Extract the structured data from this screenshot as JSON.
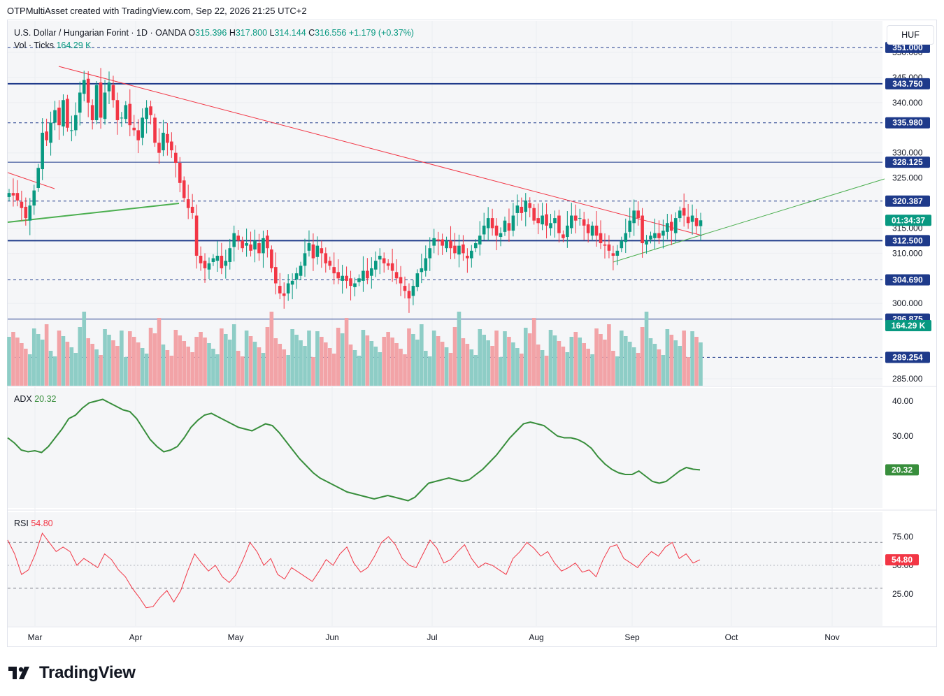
{
  "header": {
    "attribution": "OTPMultiAsset created with TradingView.com, Sep 22, 2026 21:25 UTC+2"
  },
  "legend": {
    "symbol": "U.S. Dollar / Hungarian Forint · 1D · OANDA",
    "o_label": "O",
    "o_value": "315.396",
    "h_label": "H",
    "h_value": "317.800",
    "l_label": "L",
    "l_value": "314.144",
    "c_label": "C",
    "c_value": "316.556",
    "change": "+1.179 (+0.37%)",
    "vol_label": "Vol · Ticks",
    "vol_value": "164.29 K",
    "adx_label": "ADX",
    "adx_value": "20.32",
    "rsi_label": "RSI",
    "rsi_value": "54.80"
  },
  "currency_button": "HUF",
  "brand": {
    "name": "TradingView"
  },
  "colors": {
    "up": "#089981",
    "down": "#f23645",
    "vol_up": "#8ecdc6",
    "vol_down": "#f2a3a7",
    "level": "#1e3a8a",
    "trend_down": "#f23645",
    "trend_up": "#4caf50",
    "adx": "#388e3c",
    "rsi": "#f23645"
  },
  "chart_data": [
    {
      "type": "candlestick",
      "x_labels": [
        "Mar",
        "Apr",
        "May",
        "Jun",
        "Jul",
        "Aug",
        "Sep",
        "Oct",
        "Nov"
      ],
      "y_ticks": [
        "285.000",
        "300.000",
        "310.000",
        "315.000",
        "325.000",
        "330.000",
        "340.000",
        "345.000",
        "350.000"
      ],
      "price_labels": [
        {
          "text": "351.000",
          "value": 351.0,
          "style": "dashed-label"
        },
        {
          "text": "343.750",
          "value": 343.75,
          "style": "solid-thick"
        },
        {
          "text": "335.980",
          "value": 335.98,
          "style": "dashed-label"
        },
        {
          "text": "328.125",
          "value": 328.125,
          "style": "solid-thin"
        },
        {
          "text": "320.387",
          "value": 320.387,
          "style": "dashed-plain"
        },
        {
          "text": "312.500",
          "value": 312.5,
          "style": "solid-thick"
        },
        {
          "text": "304.690",
          "value": 304.69,
          "style": "dashed-plain"
        },
        {
          "text": "296.875",
          "value": 296.875,
          "style": "solid-thin"
        },
        {
          "text": "289.254",
          "value": 289.254,
          "style": "dashed-plain"
        }
      ],
      "countdown_label": "01:34:37",
      "current_price": 316.556,
      "volume_label": "164.29 K",
      "closes": [
        322.0,
        321.5,
        320.5,
        319.0,
        317.0,
        319.5,
        322.5,
        327.0,
        334.0,
        332.5,
        336.0,
        338.5,
        335.5,
        340.5,
        335.0,
        334.5,
        337.5,
        342.0,
        344.5,
        340.0,
        336.5,
        343.5,
        337.0,
        342.0,
        344.0,
        340.5,
        336.5,
        337.0,
        339.5,
        335.5,
        334.5,
        332.5,
        337.0,
        339.0,
        337.5,
        332.0,
        330.0,
        334.0,
        332.0,
        330.5,
        328.0,
        324.0,
        321.0,
        319.0,
        318.0,
        309.5,
        308.0,
        307.0,
        308.0,
        309.0,
        309.5,
        307.0,
        308.5,
        311.0,
        314.0,
        312.5,
        311.0,
        312.0,
        310.5,
        312.5,
        310.0,
        313.0,
        311.0,
        307.0,
        304.0,
        302.0,
        301.5,
        304.0,
        304.5,
        306.0,
        307.5,
        310.0,
        312.0,
        309.0,
        311.5,
        310.0,
        308.0,
        307.5,
        306.0,
        305.0,
        305.5,
        304.5,
        303.5,
        304.0,
        305.0,
        306.5,
        305.0,
        307.0,
        308.5,
        309.5,
        308.0,
        307.5,
        306.5,
        305.0,
        304.0,
        302.5,
        301.0,
        303.5,
        306.0,
        307.0,
        309.0,
        311.0,
        313.0,
        312.5,
        311.5,
        312.5,
        311.0,
        310.0,
        311.5,
        310.0,
        309.0,
        310.5,
        312.0,
        313.5,
        315.5,
        317.0,
        315.0,
        313.5,
        314.0,
        316.5,
        314.5,
        317.5,
        319.5,
        318.0,
        320.5,
        319.0,
        316.5,
        316.0,
        317.5,
        315.5,
        316.0,
        317.0,
        314.0,
        313.0,
        315.5,
        317.5,
        316.5,
        317.0,
        315.5,
        314.0,
        315.5,
        313.5,
        312.0,
        311.5,
        310.5,
        309.5,
        310.5,
        312.5,
        314.0,
        316.5,
        318.5,
        317.0,
        312.0,
        312.5,
        313.5,
        314.0,
        313.0,
        314.5,
        316.0,
        314.5,
        317.0,
        318.5,
        317.5,
        316.0,
        317.5,
        315.4,
        316.556
      ],
      "events": [
        "high 348.0 near Mar 10",
        "low ~300.5 near May 8",
        "low ~301.0 near Jun 18",
        "high ~321.0 near Jul 25",
        "high ~321.0 near Sep 1"
      ]
    },
    {
      "type": "line",
      "name": "ADX",
      "y_ticks": [
        "40.00",
        "30.00"
      ],
      "current": 20.32,
      "values": [
        29.5,
        28.0,
        26.0,
        25.5,
        25.8,
        25.3,
        27.0,
        29.5,
        32.0,
        35.0,
        36.0,
        38.0,
        39.5,
        40.0,
        40.5,
        39.5,
        38.5,
        37.5,
        37.0,
        35.0,
        32.0,
        29.0,
        27.0,
        25.5,
        26.0,
        27.0,
        29.5,
        32.5,
        34.5,
        36.0,
        36.5,
        35.5,
        34.5,
        33.5,
        32.5,
        32.0,
        31.5,
        32.5,
        33.5,
        33.0,
        31.0,
        28.5,
        26.0,
        23.5,
        21.5,
        19.5,
        18.0,
        17.0,
        16.0,
        15.0,
        14.0,
        13.5,
        13.0,
        12.5,
        12.0,
        12.5,
        13.0,
        12.5,
        12.0,
        11.5,
        12.5,
        14.5,
        16.5,
        17.0,
        17.5,
        18.0,
        17.5,
        17.0,
        17.5,
        19.0,
        20.5,
        22.5,
        24.5,
        27.0,
        29.5,
        31.5,
        33.5,
        34.0,
        33.5,
        33.0,
        31.5,
        30.0,
        29.5,
        29.5,
        29.0,
        28.0,
        26.5,
        24.0,
        22.0,
        20.5,
        19.5,
        19.0,
        19.0,
        20.0,
        18.5,
        17.0,
        16.5,
        17.0,
        18.5,
        20.0,
        21.0,
        20.5,
        20.32
      ]
    },
    {
      "type": "line",
      "name": "RSI",
      "y_ticks": [
        "75.00",
        "50.00",
        "25.00"
      ],
      "bands": [
        70,
        30
      ],
      "current": 54.8,
      "values": [
        72.0,
        60.0,
        42.0,
        46.0,
        60.0,
        78.0,
        70.0,
        62.0,
        66.0,
        62.0,
        50.0,
        56.0,
        52.0,
        48.0,
        60.0,
        55.0,
        46.0,
        40.0,
        30.0,
        22.0,
        13.0,
        14.0,
        22.0,
        28.0,
        18.0,
        28.0,
        45.0,
        60.0,
        52.0,
        45.0,
        50.0,
        40.0,
        35.0,
        42.0,
        55.0,
        70.0,
        62.0,
        50.0,
        56.0,
        42.0,
        38.0,
        48.0,
        44.0,
        40.0,
        36.0,
        45.0,
        55.0,
        50.0,
        60.0,
        66.0,
        52.0,
        44.0,
        48.0,
        58.0,
        70.0,
        75.0,
        68.0,
        56.0,
        50.0,
        48.0,
        60.0,
        72.0,
        65.0,
        52.0,
        55.0,
        62.0,
        68.0,
        56.0,
        48.0,
        52.0,
        50.0,
        46.0,
        42.0,
        56.0,
        62.0,
        70.0,
        65.0,
        58.0,
        62.0,
        52.0,
        45.0,
        48.0,
        52.0,
        44.0,
        46.0,
        40.0,
        55.0,
        66.0,
        68.0,
        56.0,
        52.0,
        48.0,
        56.0,
        62.0,
        58.0,
        66.0,
        70.0,
        56.0,
        60.0,
        52.0,
        54.8
      ]
    }
  ]
}
